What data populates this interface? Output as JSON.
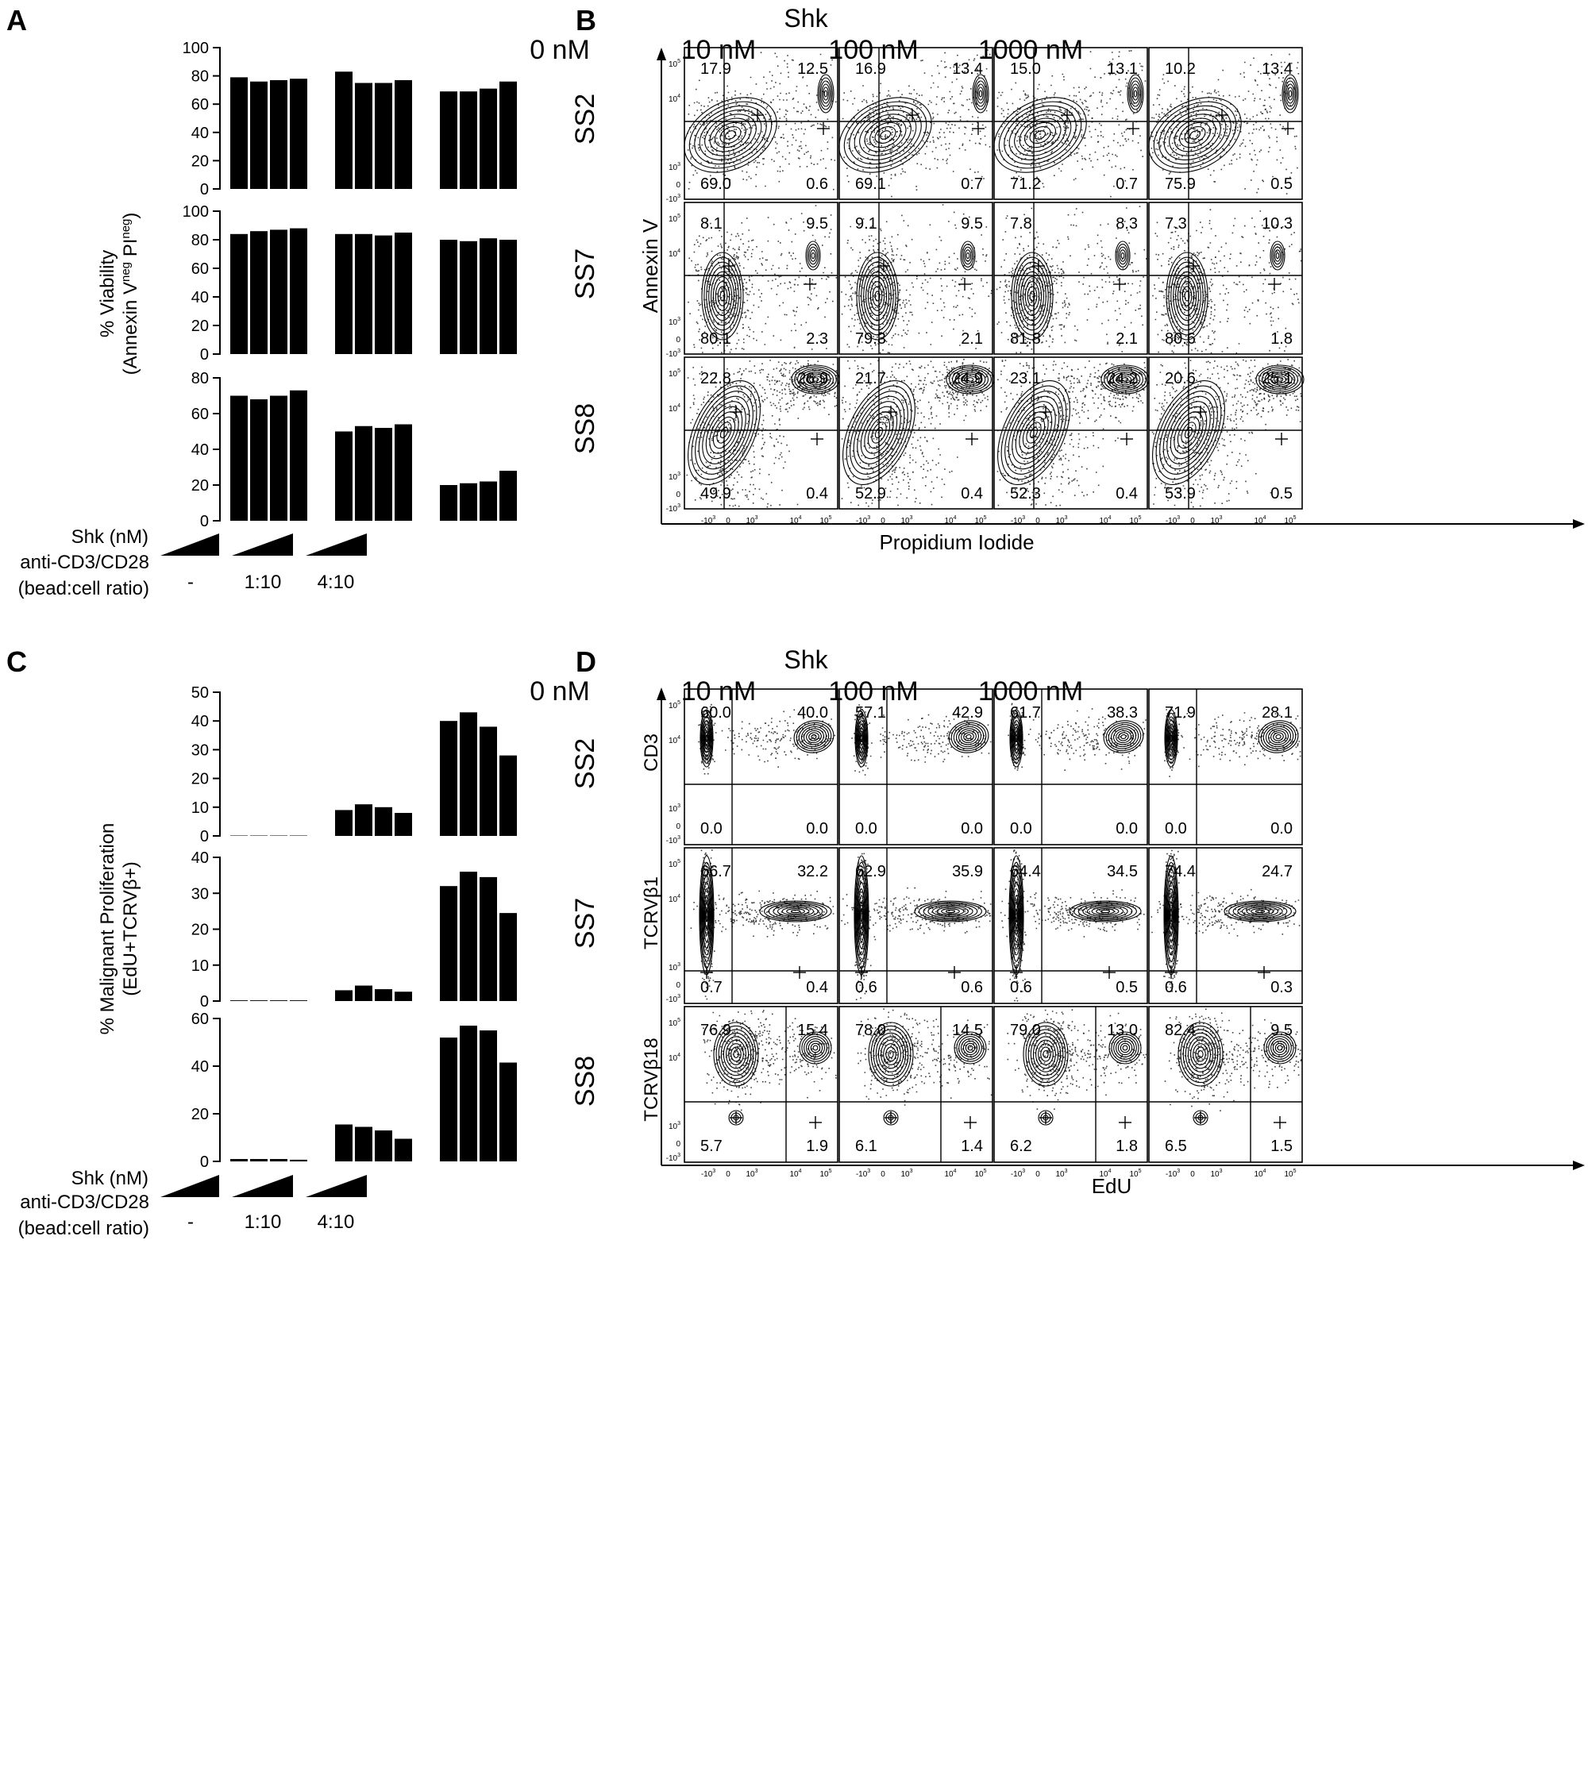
{
  "panels": {
    "A": {
      "letter": "A",
      "y_label_line1": "% Viability",
      "y_label_line2_parts": [
        "(Annexin V",
        "neg",
        " PI",
        "neg",
        ")"
      ],
      "axis_footer": {
        "shk_label": "Shk (nM)",
        "stim_label_line1": "anti-CD3/CD28",
        "stim_label_line2": "(bead:cell ratio)",
        "group_labels": [
          "-",
          "1:10",
          "4:10"
        ]
      }
    },
    "B": {
      "letter": "B",
      "title": "Shk",
      "x_label": "Propidium Iodide",
      "y_label": "Annexin V"
    },
    "C": {
      "letter": "C",
      "y_label_line1": "% Malignant Proliferation",
      "y_label_line2": "(EdU+TCRVβ+)",
      "axis_footer": {
        "shk_label": "Shk (nM)",
        "stim_label_line1": "anti-CD3/CD28",
        "stim_label_line2": "(bead:cell ratio)",
        "group_labels": [
          "-",
          "1:10",
          "4:10"
        ]
      }
    },
    "D": {
      "letter": "D",
      "title": "Shk",
      "x_label": "EdU",
      "row_y_labels": [
        "CD3",
        "TCRVβ1",
        "TCRVβ18"
      ]
    }
  },
  "concentrations": [
    "0 nM",
    "10 nM",
    "100 nM",
    "1000 nM"
  ],
  "samples": [
    "SS2",
    "SS7",
    "SS8"
  ],
  "flow_tick_labels": {
    "zero": "0",
    "neg3_base": "-10",
    "neg3_exp": "3",
    "pos_base": "10",
    "pos_exps": [
      "3",
      "4",
      "5"
    ]
  },
  "chart_data": [
    {
      "type": "bar",
      "panel": "A",
      "sample": "SS2",
      "groups": [
        "-",
        "1:10",
        "4:10"
      ],
      "shk_nM": [
        "0",
        "10",
        "100",
        "1000"
      ],
      "values": [
        [
          79,
          76,
          77,
          78
        ],
        [
          83,
          75,
          75,
          77
        ],
        [
          69,
          69,
          71,
          76
        ]
      ],
      "ylim": [
        0,
        100
      ],
      "yticks": [
        0,
        20,
        40,
        60,
        80,
        100
      ]
    },
    {
      "type": "bar",
      "panel": "A",
      "sample": "SS7",
      "groups": [
        "-",
        "1:10",
        "4:10"
      ],
      "shk_nM": [
        "0",
        "10",
        "100",
        "1000"
      ],
      "values": [
        [
          84,
          86,
          87,
          88
        ],
        [
          84,
          84,
          83,
          85
        ],
        [
          80,
          79,
          81,
          80
        ]
      ],
      "ylim": [
        0,
        100
      ],
      "yticks": [
        0,
        20,
        40,
        60,
        80,
        100
      ]
    },
    {
      "type": "bar",
      "panel": "A",
      "sample": "SS8",
      "groups": [
        "-",
        "1:10",
        "4:10"
      ],
      "shk_nM": [
        "0",
        "10",
        "100",
        "1000"
      ],
      "values": [
        [
          70,
          68,
          70,
          73
        ],
        [
          50,
          53,
          52,
          54
        ],
        [
          20,
          21,
          22,
          28
        ]
      ],
      "ylim": [
        0,
        80
      ],
      "yticks": [
        0,
        20,
        40,
        60,
        80
      ]
    },
    {
      "type": "bar",
      "panel": "C",
      "sample": "SS2",
      "groups": [
        "-",
        "1:10",
        "4:10"
      ],
      "shk_nM": [
        "0",
        "10",
        "100",
        "1000"
      ],
      "values": [
        [
          0,
          0,
          0,
          0
        ],
        [
          9,
          11,
          10,
          8
        ],
        [
          40,
          43,
          38,
          28
        ]
      ],
      "ylim": [
        0,
        50
      ],
      "yticks": [
        0,
        10,
        20,
        30,
        40,
        50
      ]
    },
    {
      "type": "bar",
      "panel": "C",
      "sample": "SS7",
      "groups": [
        "-",
        "1:10",
        "4:10"
      ],
      "shk_nM": [
        "0",
        "10",
        "100",
        "1000"
      ],
      "values": [
        [
          0.2,
          0.2,
          0.2,
          0.2
        ],
        [
          3,
          4.3,
          3.3,
          2.6
        ],
        [
          32,
          36,
          34.5,
          24.5
        ]
      ],
      "ylim": [
        0,
        40
      ],
      "yticks": [
        0,
        10,
        20,
        30,
        40
      ]
    },
    {
      "type": "bar",
      "panel": "C",
      "sample": "SS8",
      "groups": [
        "-",
        "1:10",
        "4:10"
      ],
      "shk_nM": [
        "0",
        "10",
        "100",
        "1000"
      ],
      "values": [
        [
          1,
          1,
          1,
          0.7
        ],
        [
          15.5,
          14.5,
          13,
          9.5
        ],
        [
          52,
          57,
          55,
          41.5
        ]
      ],
      "ylim": [
        0,
        60
      ],
      "yticks": [
        0,
        20,
        40,
        60
      ]
    },
    {
      "type": "scatter",
      "panel": "B",
      "x_axis": "Propidium Iodide",
      "y_axis": "Annexin V",
      "concentrations": [
        "0 nM",
        "10 nM",
        "100 nM",
        "1000 nM"
      ],
      "samples": [
        "SS2",
        "SS7",
        "SS8"
      ],
      "quadrant_order": [
        "top-left",
        "top-right",
        "bottom-left",
        "bottom-right"
      ],
      "quadrants": [
        [
          [
            "17.9",
            "12.5",
            "69.0",
            "0.6"
          ],
          [
            "16.9",
            "13.4",
            "69.1",
            "0.7"
          ],
          [
            "15.0",
            "13.1",
            "71.2",
            "0.7"
          ],
          [
            "10.2",
            "13.4",
            "75.9",
            "0.5"
          ]
        ],
        [
          [
            "8.1",
            "9.5",
            "80.1",
            "2.3"
          ],
          [
            "9.1",
            "9.5",
            "79.3",
            "2.1"
          ],
          [
            "7.8",
            "8.3",
            "81.8",
            "2.1"
          ],
          [
            "7.3",
            "10.3",
            "80.6",
            "1.8"
          ]
        ],
        [
          [
            "22.8",
            "26.9",
            "49.9",
            "0.4"
          ],
          [
            "21.7",
            "24.9",
            "52.9",
            "0.4"
          ],
          [
            "23.1",
            "24.2",
            "52.3",
            "0.4"
          ],
          [
            "20.6",
            "25.1",
            "53.9",
            "0.5"
          ]
        ]
      ]
    },
    {
      "type": "scatter",
      "panel": "D",
      "x_axis": "EdU",
      "y_axes": [
        "CD3",
        "TCRVβ1",
        "TCRVβ18"
      ],
      "concentrations": [
        "0 nM",
        "10 nM",
        "100 nM",
        "1000 nM"
      ],
      "samples": [
        "SS2",
        "SS7",
        "SS8"
      ],
      "quadrant_order": [
        "top-left",
        "top-right",
        "bottom-left",
        "bottom-right"
      ],
      "quadrants": [
        [
          [
            "60.0",
            "40.0",
            "0.0",
            "0.0"
          ],
          [
            "57.1",
            "42.9",
            "0.0",
            "0.0"
          ],
          [
            "61.7",
            "38.3",
            "0.0",
            "0.0"
          ],
          [
            "71.9",
            "28.1",
            "0.0",
            "0.0"
          ]
        ],
        [
          [
            "66.7",
            "32.2",
            "0.7",
            "0.4"
          ],
          [
            "62.9",
            "35.9",
            "0.6",
            "0.6"
          ],
          [
            "64.4",
            "34.5",
            "0.6",
            "0.5"
          ],
          [
            "74.4",
            "24.7",
            "0.6",
            "0.3"
          ]
        ],
        [
          [
            "76.9",
            "15.4",
            "5.7",
            "1.9"
          ],
          [
            "78.0",
            "14.5",
            "6.1",
            "1.4"
          ],
          [
            "79.0",
            "13.0",
            "6.2",
            "1.8"
          ],
          [
            "82.4",
            "9.5",
            "6.5",
            "1.5"
          ]
        ]
      ]
    }
  ]
}
